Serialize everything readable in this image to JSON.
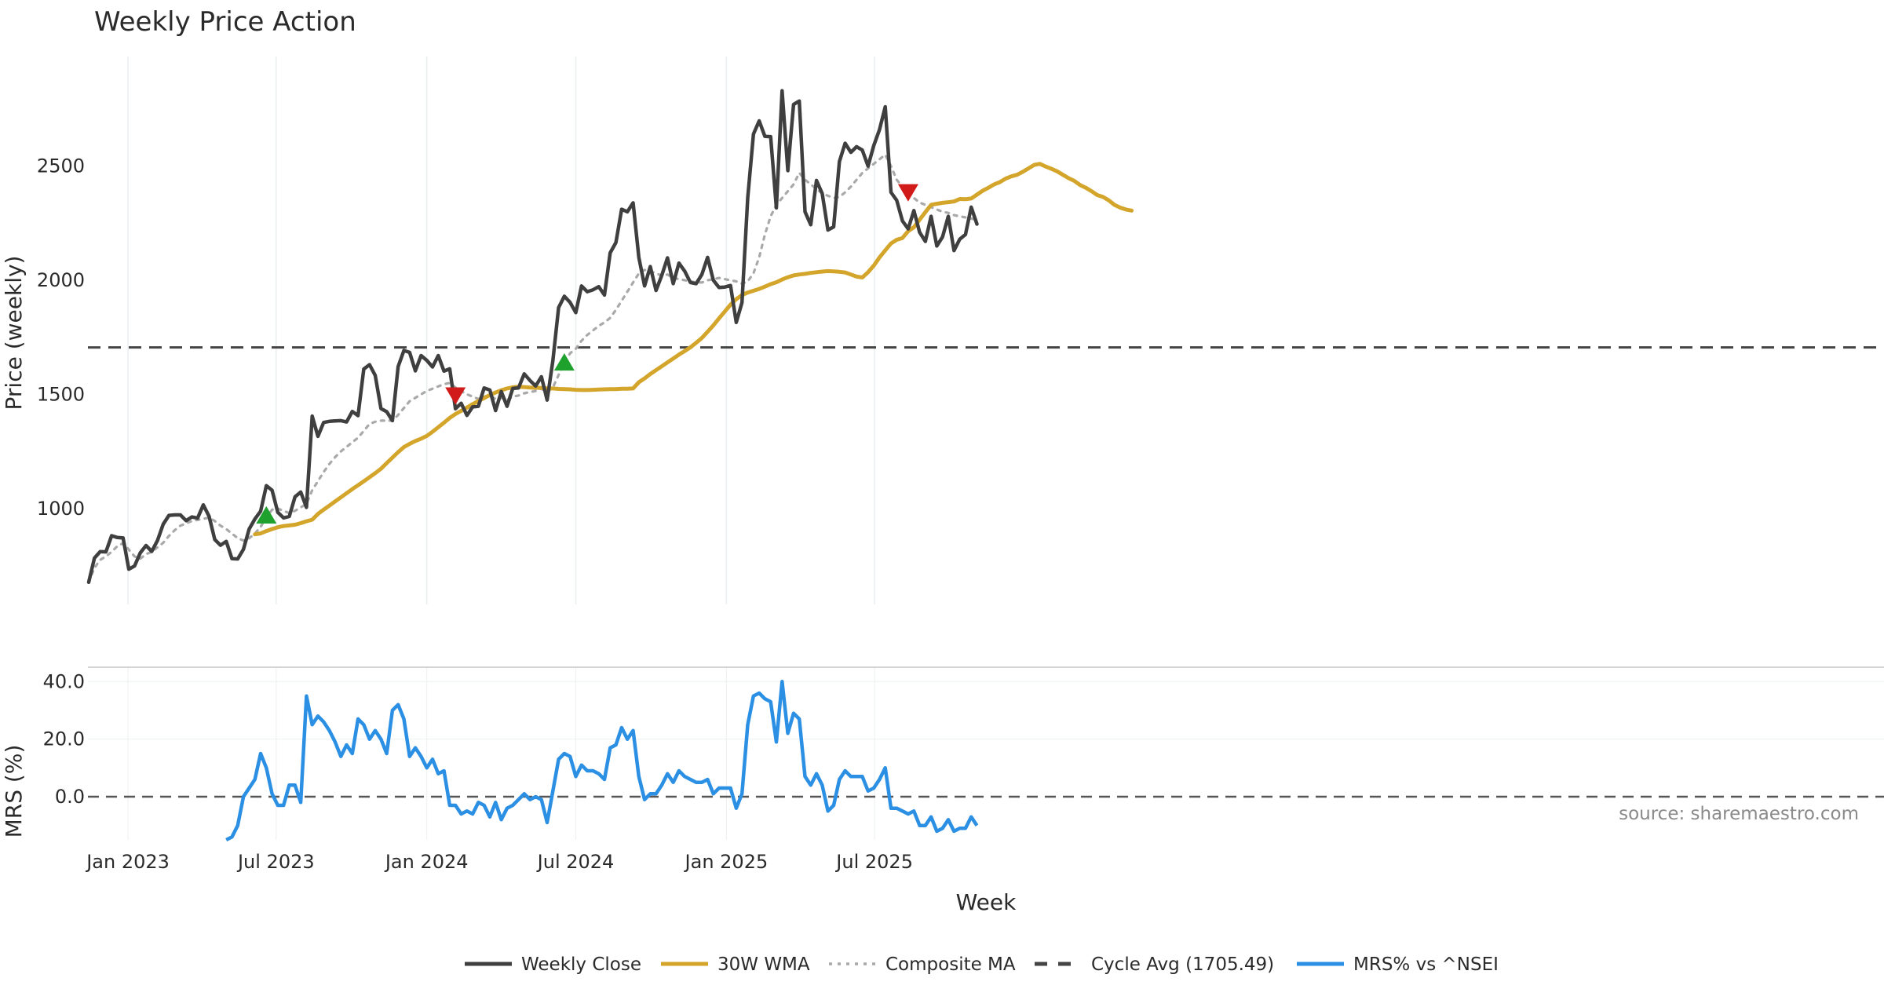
{
  "chart_data": [
    {
      "type": "line",
      "title": "Weekly Price Action",
      "xlabel": "",
      "ylabel": "Price (weekly)",
      "ylim": [
        580,
        2980
      ],
      "yticks": [
        1000,
        1500,
        2000,
        2500
      ],
      "grid": true,
      "x_start": "2022-11-14",
      "x_step_days": 7,
      "series": [
        {
          "name": "Weekly Close",
          "color": "#3f3f3f",
          "values": [
            677,
            783,
            811,
            810,
            881,
            873,
            871,
            734,
            748,
            806,
            838,
            812,
            860,
            931,
            970,
            972,
            972,
            947,
            963,
            958,
            1016,
            966,
            864,
            839,
            856,
            780,
            779,
            821,
            910,
            954,
            988,
            1100,
            1080,
            983,
            959,
            965,
            1051,
            1072,
            1005,
            1405,
            1316,
            1377,
            1382,
            1384,
            1385,
            1379,
            1425,
            1407,
            1611,
            1630,
            1583,
            1438,
            1424,
            1385,
            1622,
            1692,
            1684,
            1603,
            1670,
            1649,
            1620,
            1670,
            1602,
            1612,
            1437,
            1461,
            1408,
            1445,
            1448,
            1528,
            1519,
            1429,
            1512,
            1448,
            1526,
            1528,
            1590,
            1561,
            1537,
            1577,
            1475,
            1648,
            1880,
            1930,
            1903,
            1858,
            1975,
            1950,
            1958,
            1972,
            1935,
            2120,
            2165,
            2311,
            2300,
            2339,
            2100,
            1975,
            2060,
            1955,
            2021,
            2098,
            1985,
            2075,
            2040,
            1990,
            1985,
            2025,
            2100,
            2000,
            1968,
            1970,
            1977,
            1815,
            1902,
            2360,
            2640,
            2698,
            2630,
            2629,
            2317,
            2830,
            2480,
            2770,
            2785,
            2300,
            2243,
            2437,
            2380,
            2220,
            2234,
            2520,
            2600,
            2560,
            2585,
            2570,
            2500,
            2590,
            2660,
            2760,
            2385,
            2350,
            2260,
            2225,
            2305,
            2210,
            2170,
            2280,
            2150,
            2190,
            2280,
            2130,
            2180,
            2200,
            2320,
            2246
          ]
        },
        {
          "name": "30W WMA",
          "color": "#d4a52b",
          "start_index": 29,
          "values": [
            887,
            891,
            901,
            910,
            918,
            923,
            926,
            929,
            936,
            944,
            951,
            976,
            995,
            1013,
            1031,
            1049,
            1067,
            1085,
            1102,
            1119,
            1137,
            1155,
            1174,
            1199,
            1223,
            1247,
            1269,
            1283,
            1296,
            1306,
            1318,
            1336,
            1356,
            1376,
            1397,
            1414,
            1428,
            1442,
            1457,
            1471,
            1484,
            1497,
            1508,
            1518,
            1526,
            1531,
            1533,
            1532,
            1530,
            1529,
            1528,
            1526,
            1526,
            1524,
            1523,
            1522,
            1520,
            1519,
            1519,
            1520,
            1521,
            1522,
            1523,
            1523,
            1525,
            1525,
            1526,
            1553,
            1570,
            1589,
            1606,
            1623,
            1640,
            1657,
            1674,
            1690,
            1706,
            1726,
            1747,
            1774,
            1802,
            1833,
            1863,
            1893,
            1917,
            1935,
            1946,
            1954,
            1962,
            1972,
            1983,
            1991,
            2003,
            2013,
            2021,
            2025,
            2028,
            2032,
            2035,
            2038,
            2040,
            2039,
            2037,
            2034,
            2025,
            2016,
            2012,
            2035,
            2064,
            2100,
            2131,
            2161,
            2177,
            2185,
            2215,
            2232,
            2265,
            2298,
            2330,
            2335,
            2339,
            2342,
            2345,
            2356,
            2355,
            2358,
            2375,
            2392,
            2405,
            2420,
            2430,
            2445,
            2455,
            2462,
            2475,
            2490,
            2505,
            2510,
            2498,
            2488,
            2477,
            2462,
            2447,
            2435,
            2417,
            2405,
            2390,
            2373,
            2365,
            2350,
            2330,
            2318,
            2310,
            2305
          ]
        },
        {
          "name": "Composite MA",
          "color": "#a9a9a9",
          "values": [
            677,
            740,
            775,
            790,
            810,
            835,
            848,
            820,
            790,
            780,
            800,
            810,
            830,
            850,
            880,
            905,
            925,
            935,
            945,
            950,
            955,
            960,
            945,
            925,
            910,
            890,
            870,
            860,
            870,
            890,
            920,
            960,
            995,
            1000,
            990,
            980,
            990,
            1005,
            1020,
            1080,
            1120,
            1160,
            1195,
            1225,
            1250,
            1270,
            1290,
            1310,
            1340,
            1370,
            1380,
            1385,
            1385,
            1385,
            1410,
            1440,
            1470,
            1485,
            1500,
            1515,
            1525,
            1535,
            1545,
            1550,
            1530,
            1515,
            1500,
            1490,
            1480,
            1490,
            1495,
            1480,
            1485,
            1475,
            1490,
            1495,
            1505,
            1510,
            1515,
            1525,
            1510,
            1530,
            1585,
            1640,
            1680,
            1700,
            1735,
            1760,
            1780,
            1800,
            1815,
            1835,
            1870,
            1910,
            1950,
            1990,
            2030,
            2045,
            2040,
            2030,
            2020,
            2025,
            2010,
            2005,
            2000,
            1995,
            1990,
            1990,
            2000,
            2005,
            2010,
            2005,
            2000,
            1995,
            1985,
            1995,
            2030,
            2100,
            2200,
            2280,
            2330,
            2360,
            2390,
            2420,
            2470,
            2440,
            2420,
            2400,
            2380,
            2370,
            2360,
            2365,
            2385,
            2410,
            2440,
            2470,
            2490,
            2510,
            2530,
            2550,
            2500,
            2440,
            2410,
            2380,
            2360,
            2340,
            2330,
            2320,
            2310,
            2300,
            2295,
            2285,
            2280,
            2275,
            2270,
            2265
          ]
        },
        {
          "name": "Cycle Avg (1705.49)",
          "color": "#444444",
          "constant": 1705.49
        }
      ],
      "markers": [
        {
          "type": "buy",
          "date": "2023-06-19",
          "value": 970,
          "color": "#1fa12e"
        },
        {
          "type": "sell",
          "date": "2024-02-05",
          "value": 1495,
          "color": "#d11a1a"
        },
        {
          "type": "buy",
          "date": "2024-06-17",
          "value": 1640,
          "color": "#1fa12e"
        },
        {
          "type": "sell",
          "date": "2025-08-11",
          "value": 2385,
          "color": "#d11a1a"
        }
      ]
    },
    {
      "type": "line",
      "xlabel": "Week",
      "ylabel": "MRS (%)",
      "ylim": [
        -15,
        45
      ],
      "yticks": [
        0,
        20,
        40
      ],
      "ytick_labels": [
        "0.0",
        "20.0",
        "40.0"
      ],
      "xticks": [
        "Jan 2023",
        "Jul 2023",
        "Jan 2024",
        "Jul 2024",
        "Jan 2025",
        "Jul 2025"
      ],
      "xtick_dates": [
        "2023-01-01",
        "2023-07-01",
        "2024-01-01",
        "2024-07-01",
        "2025-01-01",
        "2025-07-01"
      ],
      "grid": true,
      "series": [
        {
          "name": "MRS% vs ^NSEI",
          "color": "#2b8fe3",
          "start_index": 24,
          "values": [
            -15,
            -14,
            -10,
            0,
            3,
            6,
            15,
            10,
            1,
            -3,
            -3,
            4,
            4,
            -2,
            35,
            25,
            28,
            26,
            23,
            19,
            14,
            18,
            15,
            27,
            25,
            20,
            23,
            20,
            15,
            30,
            32,
            27,
            14,
            17,
            14,
            10,
            13,
            8,
            9,
            -3,
            -3,
            -6,
            -5,
            -6,
            -2,
            -3,
            -7,
            -2,
            -8,
            -4,
            -3,
            -1,
            1,
            -1,
            0,
            -1,
            -9,
            2,
            13,
            15,
            14,
            7,
            11,
            9,
            9,
            8,
            6,
            17,
            18,
            24,
            20,
            23,
            7,
            -1,
            1,
            1,
            4,
            8,
            5,
            9,
            7,
            6,
            5,
            5,
            6,
            1,
            3,
            3,
            3,
            -4,
            1,
            25,
            35,
            36,
            34,
            33,
            19,
            40,
            22,
            29,
            27,
            7,
            4,
            8,
            4,
            -5,
            -3,
            6,
            9,
            7,
            7,
            7,
            2,
            3,
            6,
            10,
            -4,
            -4,
            -5,
            -6,
            -5,
            -10,
            -10,
            -7,
            -12,
            -11,
            -8,
            -12,
            -11,
            -11,
            -7,
            -10
          ]
        }
      ]
    }
  ],
  "legend": {
    "placement": "bottom-center",
    "items": [
      {
        "label": "Weekly Close",
        "color": "#3f3f3f",
        "style": "solid"
      },
      {
        "label": "30W WMA",
        "color": "#d4a52b",
        "style": "solid"
      },
      {
        "label": "Composite MA",
        "color": "#a9a9a9",
        "style": "dotted"
      },
      {
        "label": "Cycle Avg (1705.49)",
        "color": "#444444",
        "style": "dashed"
      },
      {
        "label": "MRS% vs ^NSEI",
        "color": "#2b8fe3",
        "style": "solid"
      }
    ]
  },
  "source": "source: sharemaestro.com"
}
